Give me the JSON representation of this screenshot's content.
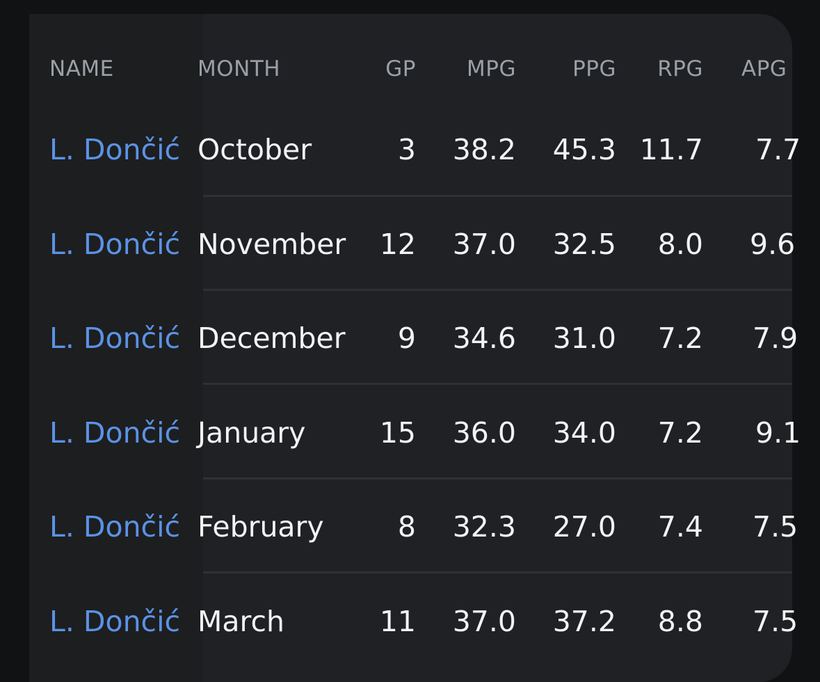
{
  "table": {
    "columns": [
      "NAME",
      "MONTH",
      "GP",
      "MPG",
      "PPG",
      "RPG",
      "APG"
    ],
    "rows": [
      {
        "name": "L. Dončić",
        "month": "October",
        "gp": "3",
        "mpg": "38.2",
        "ppg": "45.3",
        "rpg": "11.7",
        "apg": "7.7"
      },
      {
        "name": "L. Dončić",
        "month": "November",
        "gp": "12",
        "mpg": "37.0",
        "ppg": "32.5",
        "rpg": "8.0",
        "apg": "9.6"
      },
      {
        "name": "L. Dončić",
        "month": "December",
        "gp": "9",
        "mpg": "34.6",
        "ppg": "31.0",
        "rpg": "7.2",
        "apg": "7.9"
      },
      {
        "name": "L. Dončić",
        "month": "January",
        "gp": "15",
        "mpg": "36.0",
        "ppg": "34.0",
        "rpg": "7.2",
        "apg": "9.1"
      },
      {
        "name": "L. Dončić",
        "month": "February",
        "gp": "8",
        "mpg": "32.3",
        "ppg": "27.0",
        "rpg": "7.4",
        "apg": "7.5"
      },
      {
        "name": "L. Dončić",
        "month": "March",
        "gp": "11",
        "mpg": "37.0",
        "ppg": "37.2",
        "rpg": "8.8",
        "apg": "7.5"
      }
    ]
  },
  "colors": {
    "background": "#111214",
    "card": "#202124",
    "player_link": "#5b92e5",
    "header_text": "#9aa0a6",
    "cell_text": "#f1f3f4"
  }
}
